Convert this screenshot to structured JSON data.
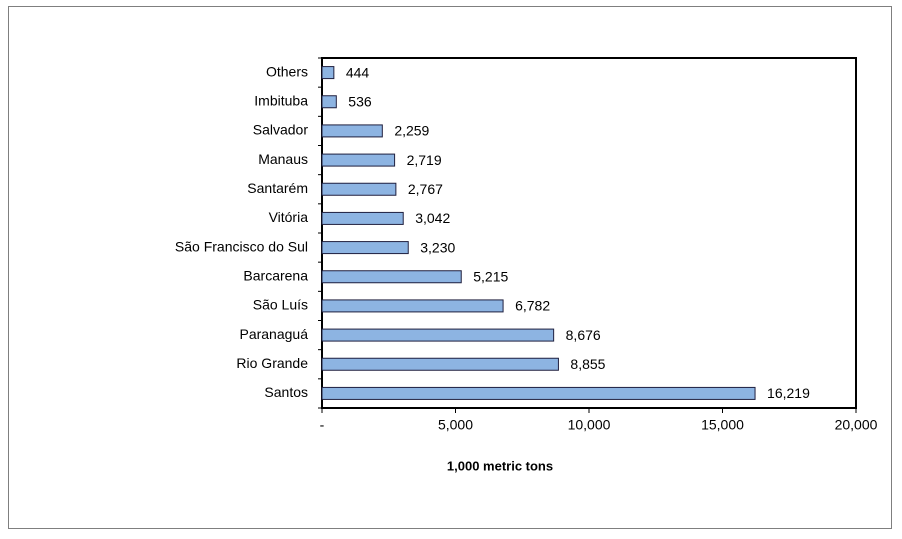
{
  "chart_data": {
    "type": "bar",
    "orientation": "horizontal",
    "x_label": "1,000 metric tons",
    "categories": [
      "Others",
      "Imbituba",
      "Salvador",
      "Manaus",
      "Santarém",
      "Vitória",
      "São Francisco do Sul",
      "Barcarena",
      "São Luís",
      "Paranaguá",
      "Rio Grande",
      "Santos"
    ],
    "values": [
      444,
      536,
      2259,
      2719,
      2767,
      3042,
      3230,
      5215,
      6782,
      8676,
      8855,
      16219
    ],
    "value_labels": [
      "444",
      "536",
      "2,259",
      "2,719",
      "2,767",
      "3,042",
      "3,230",
      "5,215",
      "6,782",
      "8,676",
      "8,855",
      "16,219"
    ],
    "color": "#8db4e2",
    "xlim": [
      0,
      20000
    ],
    "xticks": [
      {
        "value": 0,
        "label": "-"
      },
      {
        "value": 5000,
        "label": "5,000"
      },
      {
        "value": 10000,
        "label": "10,000"
      },
      {
        "value": 15000,
        "label": "15,000"
      },
      {
        "value": 20000,
        "label": "20,000"
      }
    ],
    "grid": false
  }
}
